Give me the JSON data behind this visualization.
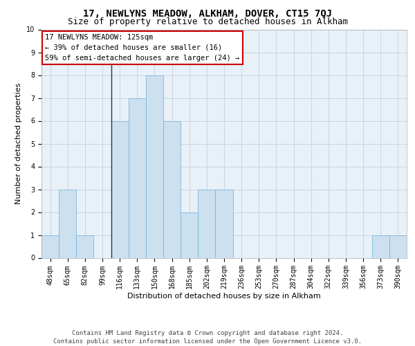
{
  "title_line1": "17, NEWLYNS MEADOW, ALKHAM, DOVER, CT15 7QJ",
  "title_line2": "Size of property relative to detached houses in Alkham",
  "xlabel": "Distribution of detached houses by size in Alkham",
  "ylabel": "Number of detached properties",
  "bin_labels": [
    "48sqm",
    "65sqm",
    "82sqm",
    "99sqm",
    "116sqm",
    "133sqm",
    "150sqm",
    "168sqm",
    "185sqm",
    "202sqm",
    "219sqm",
    "236sqm",
    "253sqm",
    "270sqm",
    "287sqm",
    "304sqm",
    "322sqm",
    "339sqm",
    "356sqm",
    "373sqm",
    "390sqm"
  ],
  "bar_values": [
    1,
    3,
    1,
    0,
    6,
    7,
    8,
    6,
    2,
    3,
    3,
    0,
    0,
    0,
    0,
    0,
    0,
    0,
    0,
    1,
    1
  ],
  "bar_color": "#cce0f0",
  "bar_edgecolor": "#7ab8d9",
  "property_line_after_index": 3,
  "ylim": [
    0,
    10
  ],
  "yticks": [
    0,
    1,
    2,
    3,
    4,
    5,
    6,
    7,
    8,
    9,
    10
  ],
  "annotation_box_text": "17 NEWLYNS MEADOW: 125sqm\n← 39% of detached houses are smaller (16)\n59% of semi-detached houses are larger (24) →",
  "box_edgecolor": "#cc0000",
  "background_color": "#ffffff",
  "plot_bg_color": "#e8f0f8",
  "grid_color": "#c0ccd8",
  "footer_line1": "Contains HM Land Registry data © Crown copyright and database right 2024.",
  "footer_line2": "Contains public sector information licensed under the Open Government Licence v3.0.",
  "title_fontsize": 10,
  "subtitle_fontsize": 9,
  "axis_label_fontsize": 8,
  "tick_fontsize": 7,
  "annotation_fontsize": 7.5,
  "footer_fontsize": 6.5
}
